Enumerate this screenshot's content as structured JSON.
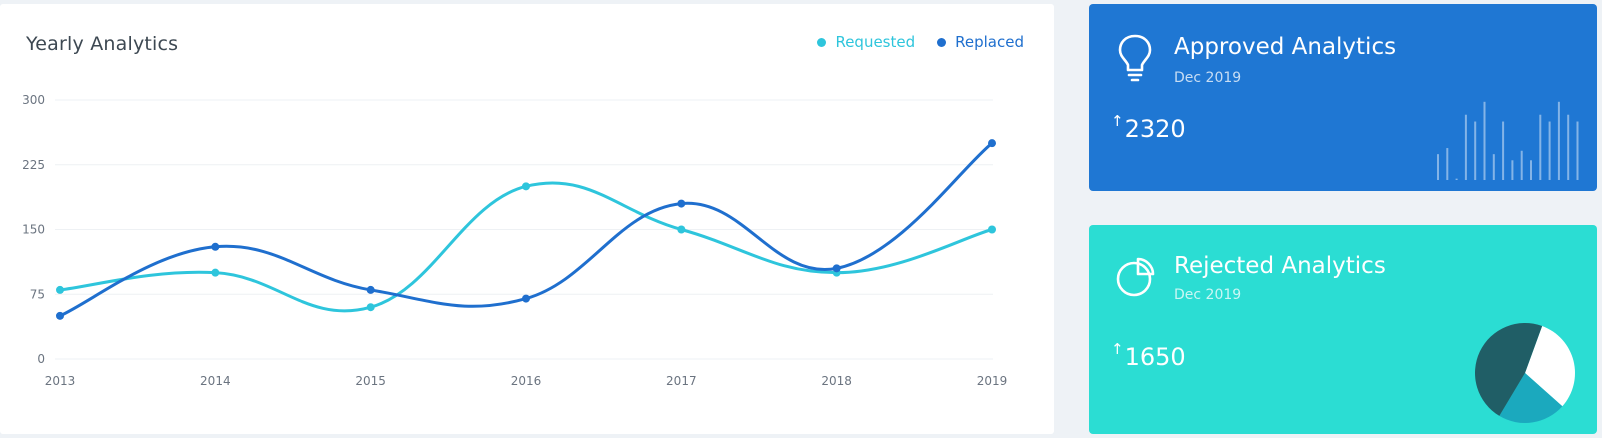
{
  "chart_card": {
    "title": "Yearly Analytics"
  },
  "chart_data": {
    "type": "line",
    "x": [
      "2013",
      "2014",
      "2015",
      "2016",
      "2017",
      "2018",
      "2019"
    ],
    "series": [
      {
        "name": "Requested",
        "color": "#2ec5dc",
        "values": [
          80,
          100,
          60,
          200,
          150,
          100,
          150
        ]
      },
      {
        "name": "Replaced",
        "color": "#1f6fce",
        "values": [
          50,
          130,
          80,
          70,
          180,
          105,
          250
        ]
      }
    ],
    "yticks": [
      0,
      75,
      150,
      225,
      300
    ],
    "ylim": [
      0,
      300
    ],
    "grid": true,
    "legend_position": "top-right",
    "curve": "smooth"
  },
  "approved_card": {
    "title": "Approved Analytics",
    "date": "Dec 2019",
    "value": "2320",
    "icon": "lightbulb-icon",
    "color": "#1f77d3",
    "sparkline_bars": [
      0.38,
      0.47,
      0.02,
      0.96,
      0.86,
      1.15,
      0.38,
      0.86,
      0.29,
      0.43,
      0.29,
      0.96,
      0.86,
      1.15,
      0.96,
      0.86
    ]
  },
  "rejected_card": {
    "title": "Rejected Analytics",
    "date": "Dec 2019",
    "value": "1650",
    "icon": "pie-chart-icon",
    "color": "#2bddd3",
    "pie_slices": [
      {
        "value": 31,
        "color": "#ffffff"
      },
      {
        "value": 22,
        "color": "#1ba9be"
      },
      {
        "value": 47,
        "color": "#205e66"
      }
    ]
  }
}
